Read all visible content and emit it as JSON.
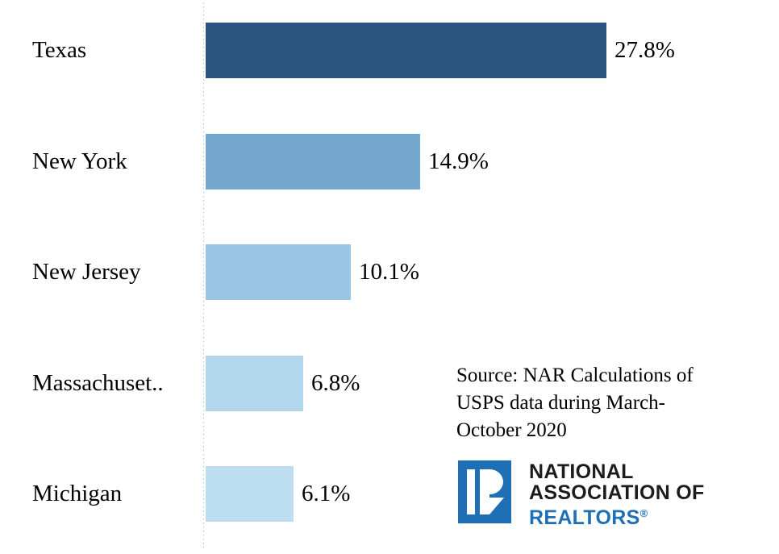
{
  "chart_data": {
    "type": "bar",
    "orientation": "horizontal",
    "title": "",
    "xlabel": "",
    "ylabel": "",
    "categories": [
      "Texas",
      "New York",
      "New Jersey",
      "Massachuset..",
      "Michigan"
    ],
    "values": [
      27.8,
      14.9,
      10.1,
      6.8,
      6.1
    ],
    "value_labels": [
      "27.8%",
      "14.9%",
      "10.1%",
      "6.8%",
      "6.1%"
    ],
    "bar_colors": [
      "#2B5580",
      "#74A7CE",
      "#99C6E3",
      "#B2D7ED",
      "#BCDEF0"
    ],
    "xlim": [
      0,
      40
    ],
    "grid": false,
    "axis_baseline_style": "dotted",
    "value_label_position": "outside-end"
  },
  "source_note": {
    "full_text": "Source: NAR Calculations of USPS data during March-October 2020",
    "line1": "Source: NAR Calculations of",
    "line2": "USPS data during March-",
    "line3": "October 2020"
  },
  "logo": {
    "name": "National Association of Realtors",
    "line1": "NATIONAL",
    "line2": "ASSOCIATION OF",
    "line3": "REALTORS",
    "registered_mark": "®",
    "brand_blue": "#1E6FB6",
    "text_dark": "#1D1B1B"
  },
  "colors": {
    "background": "#FFFFFF",
    "axis_line": "#BDBDBD",
    "text": "#000000"
  }
}
